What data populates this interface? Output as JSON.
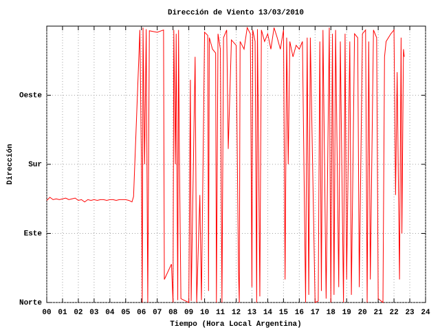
{
  "chart_data": {
    "type": "line",
    "title": "Dirección de Viento 13/03/2010",
    "x_label": "Tiempo (Hora Local Argentina)",
    "y_label": "Dirección",
    "color": "#ff0000",
    "grid": true,
    "xlim": [
      0,
      24
    ],
    "xticks": [
      {
        "value": 0,
        "label": "00"
      },
      {
        "value": 1,
        "label": "01"
      },
      {
        "value": 2,
        "label": "02"
      },
      {
        "value": 3,
        "label": "03"
      },
      {
        "value": 4,
        "label": "04"
      },
      {
        "value": 5,
        "label": "05"
      },
      {
        "value": 6,
        "label": "06"
      },
      {
        "value": 7,
        "label": "07"
      },
      {
        "value": 8,
        "label": "08"
      },
      {
        "value": 9,
        "label": "09"
      },
      {
        "value": 10,
        "label": "10"
      },
      {
        "value": 11,
        "label": "11"
      },
      {
        "value": 12,
        "label": "12"
      },
      {
        "value": 13,
        "label": "13"
      },
      {
        "value": 14,
        "label": "14"
      },
      {
        "value": 15,
        "label": "15"
      },
      {
        "value": 16,
        "label": "16"
      },
      {
        "value": 17,
        "label": "17"
      },
      {
        "value": 18,
        "label": "18"
      },
      {
        "value": 19,
        "label": "19"
      },
      {
        "value": 20,
        "label": "20"
      },
      {
        "value": 21,
        "label": "21"
      },
      {
        "value": 22,
        "label": "22"
      },
      {
        "value": 23,
        "label": "23"
      },
      {
        "value": 24,
        "label": "24"
      }
    ],
    "ylim": [
      0,
      360
    ],
    "yticks": [
      {
        "value": 0,
        "label": "Norte"
      },
      {
        "value": 90,
        "label": "Este"
      },
      {
        "value": 180,
        "label": "Sur"
      },
      {
        "value": 270,
        "label": "Oeste"
      }
    ],
    "x": [
      0,
      0.2,
      0.4,
      0.6,
      0.8,
      1.0,
      1.2,
      1.4,
      1.6,
      1.8,
      2.0,
      2.2,
      2.4,
      2.6,
      2.8,
      3.0,
      3.2,
      3.4,
      3.6,
      3.8,
      4.0,
      4.2,
      4.4,
      4.6,
      4.8,
      5.0,
      5.2,
      5.4,
      5.5,
      5.9,
      6.0,
      6.05,
      6.1,
      6.2,
      6.3,
      6.4,
      6.5,
      7.0,
      7.4,
      7.45,
      7.9,
      8.0,
      8.05,
      8.15,
      8.2,
      8.3,
      8.35,
      8.4,
      8.5,
      8.8,
      9.0,
      9.1,
      9.15,
      9.4,
      9.5,
      9.7,
      9.8,
      10.0,
      10.2,
      10.25,
      10.3,
      10.5,
      10.7,
      10.75,
      10.85,
      11.0,
      11.1,
      11.2,
      11.4,
      11.5,
      11.7,
      12.0,
      12.15,
      12.2,
      12.25,
      12.5,
      12.7,
      12.9,
      13.0,
      13.05,
      13.2,
      13.3,
      13.35,
      13.5,
      13.6,
      13.8,
      14.0,
      14.2,
      14.4,
      14.6,
      14.8,
      15.0,
      15.1,
      15.2,
      15.3,
      15.4,
      15.6,
      15.8,
      16.0,
      16.2,
      16.4,
      16.5,
      16.6,
      16.7,
      17.0,
      17.2,
      17.3,
      17.4,
      17.5,
      17.7,
      17.9,
      18.0,
      18.1,
      18.2,
      18.3,
      18.5,
      18.6,
      18.8,
      18.9,
      19.0,
      19.2,
      19.3,
      19.5,
      19.7,
      19.8,
      20.0,
      20.2,
      20.3,
      20.4,
      20.5,
      20.7,
      20.9,
      21.0,
      21.3,
      21.4,
      21.5,
      21.8,
      22.0,
      22.1,
      22.2,
      22.35,
      22.45,
      22.5,
      22.6,
      22.65
    ],
    "values": [
      133,
      137,
      134,
      135,
      134,
      135,
      136,
      134,
      135,
      136,
      133,
      134,
      131,
      134,
      133,
      134,
      133,
      134,
      134,
      133,
      134,
      134,
      133,
      134,
      134,
      134,
      133,
      131,
      138,
      355,
      180,
      0,
      358,
      180,
      356,
      0,
      354,
      352,
      355,
      30,
      50,
      0,
      355,
      180,
      350,
      3,
      355,
      200,
      5,
      2,
      0,
      290,
      2,
      320,
      0,
      140,
      3,
      352,
      348,
      15,
      345,
      330,
      325,
      0,
      350,
      330,
      0,
      345,
      355,
      200,
      342,
      335,
      40,
      0,
      340,
      330,
      358,
      350,
      20,
      355,
      340,
      0,
      356,
      8,
      355,
      340,
      350,
      330,
      358,
      345,
      330,
      355,
      30,
      345,
      180,
      340,
      320,
      335,
      330,
      340,
      0,
      345,
      10,
      345,
      0,
      2,
      340,
      15,
      355,
      5,
      358,
      0,
      350,
      10,
      355,
      20,
      340,
      0,
      350,
      30,
      340,
      10,
      350,
      345,
      20,
      350,
      355,
      0,
      340,
      30,
      355,
      345,
      5,
      0,
      320,
      340,
      350,
      355,
      140,
      300,
      30,
      345,
      90,
      330,
      320
    ]
  }
}
